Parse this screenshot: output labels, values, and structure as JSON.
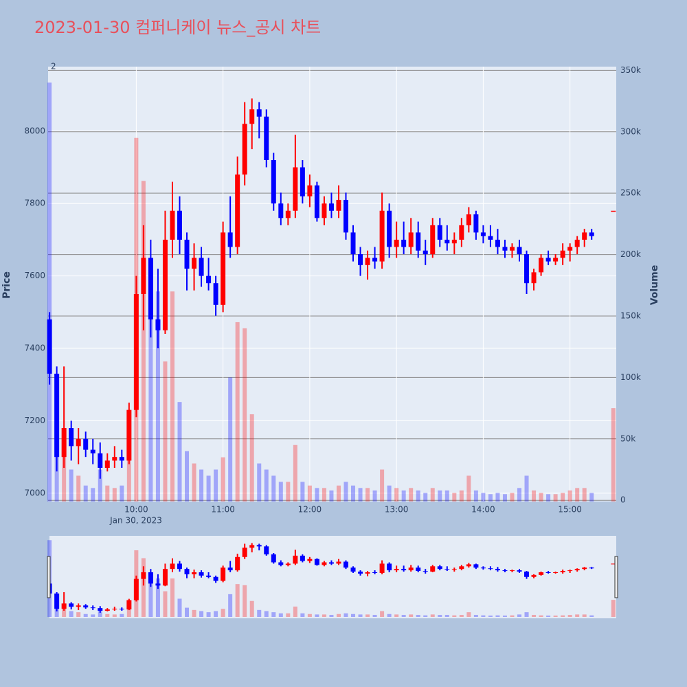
{
  "chart_data": {
    "type": "candlestick",
    "title": "2023-01-30 컴퍼니케이 뉴스_공시 차트",
    "annotation": "2",
    "ylabel": "Price",
    "y2label": "Volume",
    "increasing_color": "#ff0000",
    "decreasing_color": "#0000ff",
    "x": [
      "2023-01-30 09:00",
      "2023-01-30 09:05",
      "2023-01-30 09:10",
      "2023-01-30 09:15",
      "2023-01-30 09:20",
      "2023-01-30 09:25",
      "2023-01-30 09:30",
      "2023-01-30 09:35",
      "2023-01-30 09:40",
      "2023-01-30 09:45",
      "2023-01-30 09:50",
      "2023-01-30 09:55",
      "2023-01-30 10:00",
      "2023-01-30 10:05",
      "2023-01-30 10:10",
      "2023-01-30 10:15",
      "2023-01-30 10:20",
      "2023-01-30 10:25",
      "2023-01-30 10:30",
      "2023-01-30 10:35",
      "2023-01-30 10:40",
      "2023-01-30 10:45",
      "2023-01-30 10:50",
      "2023-01-30 10:55",
      "2023-01-30 11:00",
      "2023-01-30 11:05",
      "2023-01-30 11:10",
      "2023-01-30 11:15",
      "2023-01-30 11:20",
      "2023-01-30 11:25",
      "2023-01-30 11:30",
      "2023-01-30 11:35",
      "2023-01-30 11:40",
      "2023-01-30 11:45",
      "2023-01-30 11:50",
      "2023-01-30 11:55",
      "2023-01-30 12:00",
      "2023-01-30 12:05",
      "2023-01-30 12:10",
      "2023-01-30 12:15",
      "2023-01-30 12:20",
      "2023-01-30 12:25",
      "2023-01-30 12:30",
      "2023-01-30 12:35",
      "2023-01-30 12:40",
      "2023-01-30 12:45",
      "2023-01-30 12:50",
      "2023-01-30 12:55",
      "2023-01-30 13:00",
      "2023-01-30 13:05",
      "2023-01-30 13:10",
      "2023-01-30 13:15",
      "2023-01-30 13:20",
      "2023-01-30 13:25",
      "2023-01-30 13:30",
      "2023-01-30 13:35",
      "2023-01-30 13:40",
      "2023-01-30 13:45",
      "2023-01-30 13:50",
      "2023-01-30 13:55",
      "2023-01-30 14:00",
      "2023-01-30 14:05",
      "2023-01-30 14:10",
      "2023-01-30 14:15",
      "2023-01-30 14:20",
      "2023-01-30 14:25",
      "2023-01-30 14:30",
      "2023-01-30 14:35",
      "2023-01-30 14:40",
      "2023-01-30 14:45",
      "2023-01-30 14:50",
      "2023-01-30 14:55",
      "2023-01-30 15:00",
      "2023-01-30 15:05",
      "2023-01-30 15:10",
      "2023-01-30 15:15",
      "2023-01-30 15:30"
    ],
    "open": [
      7480,
      7330,
      7100,
      7180,
      7130,
      7150,
      7120,
      7110,
      7070,
      7090,
      7100,
      7090,
      7230,
      7550,
      7650,
      7480,
      7450,
      7700,
      7780,
      7700,
      7620,
      7650,
      7600,
      7580,
      7520,
      7720,
      7680,
      7880,
      8020,
      8060,
      8040,
      7920,
      7800,
      7760,
      7780,
      7900,
      7820,
      7850,
      7760,
      7800,
      7780,
      7810,
      7720,
      7660,
      7630,
      7650,
      7640,
      7780,
      7680,
      7700,
      7680,
      7720,
      7670,
      7660,
      7740,
      7700,
      7690,
      7700,
      7740,
      7770,
      7720,
      7710,
      7700,
      7680,
      7670,
      7680,
      7660,
      7580,
      7610,
      7650,
      7640,
      7650,
      7670,
      7680,
      7700,
      7720,
      7780
    ],
    "high": [
      7500,
      7350,
      7350,
      7200,
      7180,
      7170,
      7150,
      7140,
      7110,
      7130,
      7120,
      7250,
      7600,
      7740,
      7700,
      7620,
      7780,
      7860,
      7820,
      7720,
      7690,
      7680,
      7650,
      7600,
      7750,
      7820,
      7930,
      8080,
      8090,
      8080,
      8060,
      7940,
      7830,
      7800,
      7990,
      7920,
      7880,
      7860,
      7820,
      7830,
      7850,
      7830,
      7740,
      7680,
      7670,
      7680,
      7830,
      7800,
      7750,
      7750,
      7760,
      7750,
      7700,
      7760,
      7760,
      7740,
      7720,
      7760,
      7790,
      7780,
      7740,
      7740,
      7730,
      7700,
      7690,
      7700,
      7670,
      7620,
      7660,
      7670,
      7660,
      7690,
      7690,
      7710,
      7730,
      7730,
      7780
    ],
    "low": [
      7300,
      7060,
      7070,
      7090,
      7080,
      7100,
      7080,
      7040,
      7060,
      7070,
      7070,
      7080,
      7210,
      7450,
      7430,
      7400,
      7440,
      7650,
      7660,
      7560,
      7560,
      7570,
      7560,
      7490,
      7500,
      7650,
      7660,
      7850,
      7950,
      7980,
      7900,
      7780,
      7740,
      7740,
      7760,
      7800,
      7790,
      7750,
      7740,
      7760,
      7760,
      7700,
      7640,
      7600,
      7590,
      7620,
      7620,
      7650,
      7650,
      7660,
      7660,
      7650,
      7630,
      7650,
      7680,
      7670,
      7660,
      7680,
      7720,
      7700,
      7690,
      7680,
      7660,
      7650,
      7650,
      7640,
      7550,
      7560,
      7600,
      7630,
      7630,
      7630,
      7640,
      7660,
      7680,
      7700,
      7780
    ],
    "close": [
      7330,
      7100,
      7180,
      7130,
      7150,
      7120,
      7110,
      7070,
      7090,
      7100,
      7090,
      7230,
      7550,
      7650,
      7480,
      7450,
      7700,
      7780,
      7700,
      7620,
      7650,
      7600,
      7580,
      7520,
      7720,
      7680,
      7880,
      8020,
      8060,
      8040,
      7920,
      7800,
      7760,
      7780,
      7900,
      7820,
      7850,
      7760,
      7800,
      7780,
      7810,
      7720,
      7660,
      7630,
      7650,
      7640,
      7780,
      7680,
      7700,
      7680,
      7720,
      7670,
      7660,
      7740,
      7700,
      7690,
      7700,
      7740,
      7770,
      7720,
      7710,
      7700,
      7680,
      7670,
      7680,
      7660,
      7580,
      7610,
      7650,
      7640,
      7650,
      7670,
      7680,
      7700,
      7720,
      7710,
      7780
    ],
    "volume": [
      340000,
      60000,
      40000,
      25000,
      20000,
      12000,
      10000,
      25000,
      12000,
      10000,
      12000,
      40000,
      295000,
      260000,
      190000,
      170000,
      113000,
      170000,
      80000,
      40000,
      30000,
      25000,
      20000,
      25000,
      35000,
      100000,
      145000,
      140000,
      70000,
      30000,
      25000,
      20000,
      15000,
      15000,
      45000,
      15000,
      12000,
      10000,
      10000,
      8000,
      12000,
      15000,
      12000,
      10000,
      10000,
      8000,
      25000,
      12000,
      10000,
      8000,
      10000,
      8000,
      6000,
      10000,
      8000,
      8000,
      6000,
      8000,
      20000,
      8000,
      6000,
      5000,
      6000,
      5000,
      6000,
      10000,
      20000,
      8000,
      6000,
      5000,
      5000,
      6000,
      8000,
      10000,
      10000,
      6000,
      75000
    ],
    "xlim": [
      "2023-01-30 08:59",
      "2023-01-30 15:32"
    ],
    "xticks": [
      {
        "value": "2023-01-30 10:00",
        "label": "10:00"
      },
      {
        "value": "2023-01-30 11:00",
        "label": "11:00"
      },
      {
        "value": "2023-01-30 12:00",
        "label": "12:00"
      },
      {
        "value": "2023-01-30 13:00",
        "label": "13:00"
      },
      {
        "value": "2023-01-30 14:00",
        "label": "14:00"
      },
      {
        "value": "2023-01-30 15:00",
        "label": "15:00"
      }
    ],
    "x_date_label": "Jan 30, 2023",
    "ylim": [
      6977,
      8178
    ],
    "yticks": [
      7000,
      7200,
      7400,
      7600,
      7800,
      8000
    ],
    "y2lim": [
      -1000,
      353000
    ],
    "y2ticks": [
      0,
      {
        "value": 50000,
        "label": "50k"
      },
      {
        "value": 100000,
        "label": "100k"
      },
      {
        "value": 150000,
        "label": "150k"
      },
      {
        "value": 200000,
        "label": "200k"
      },
      {
        "value": 250000,
        "label": "250k"
      },
      {
        "value": 300000,
        "label": "300k"
      },
      {
        "value": 350000,
        "label": "350k"
      }
    ],
    "rangeslider": true
  }
}
